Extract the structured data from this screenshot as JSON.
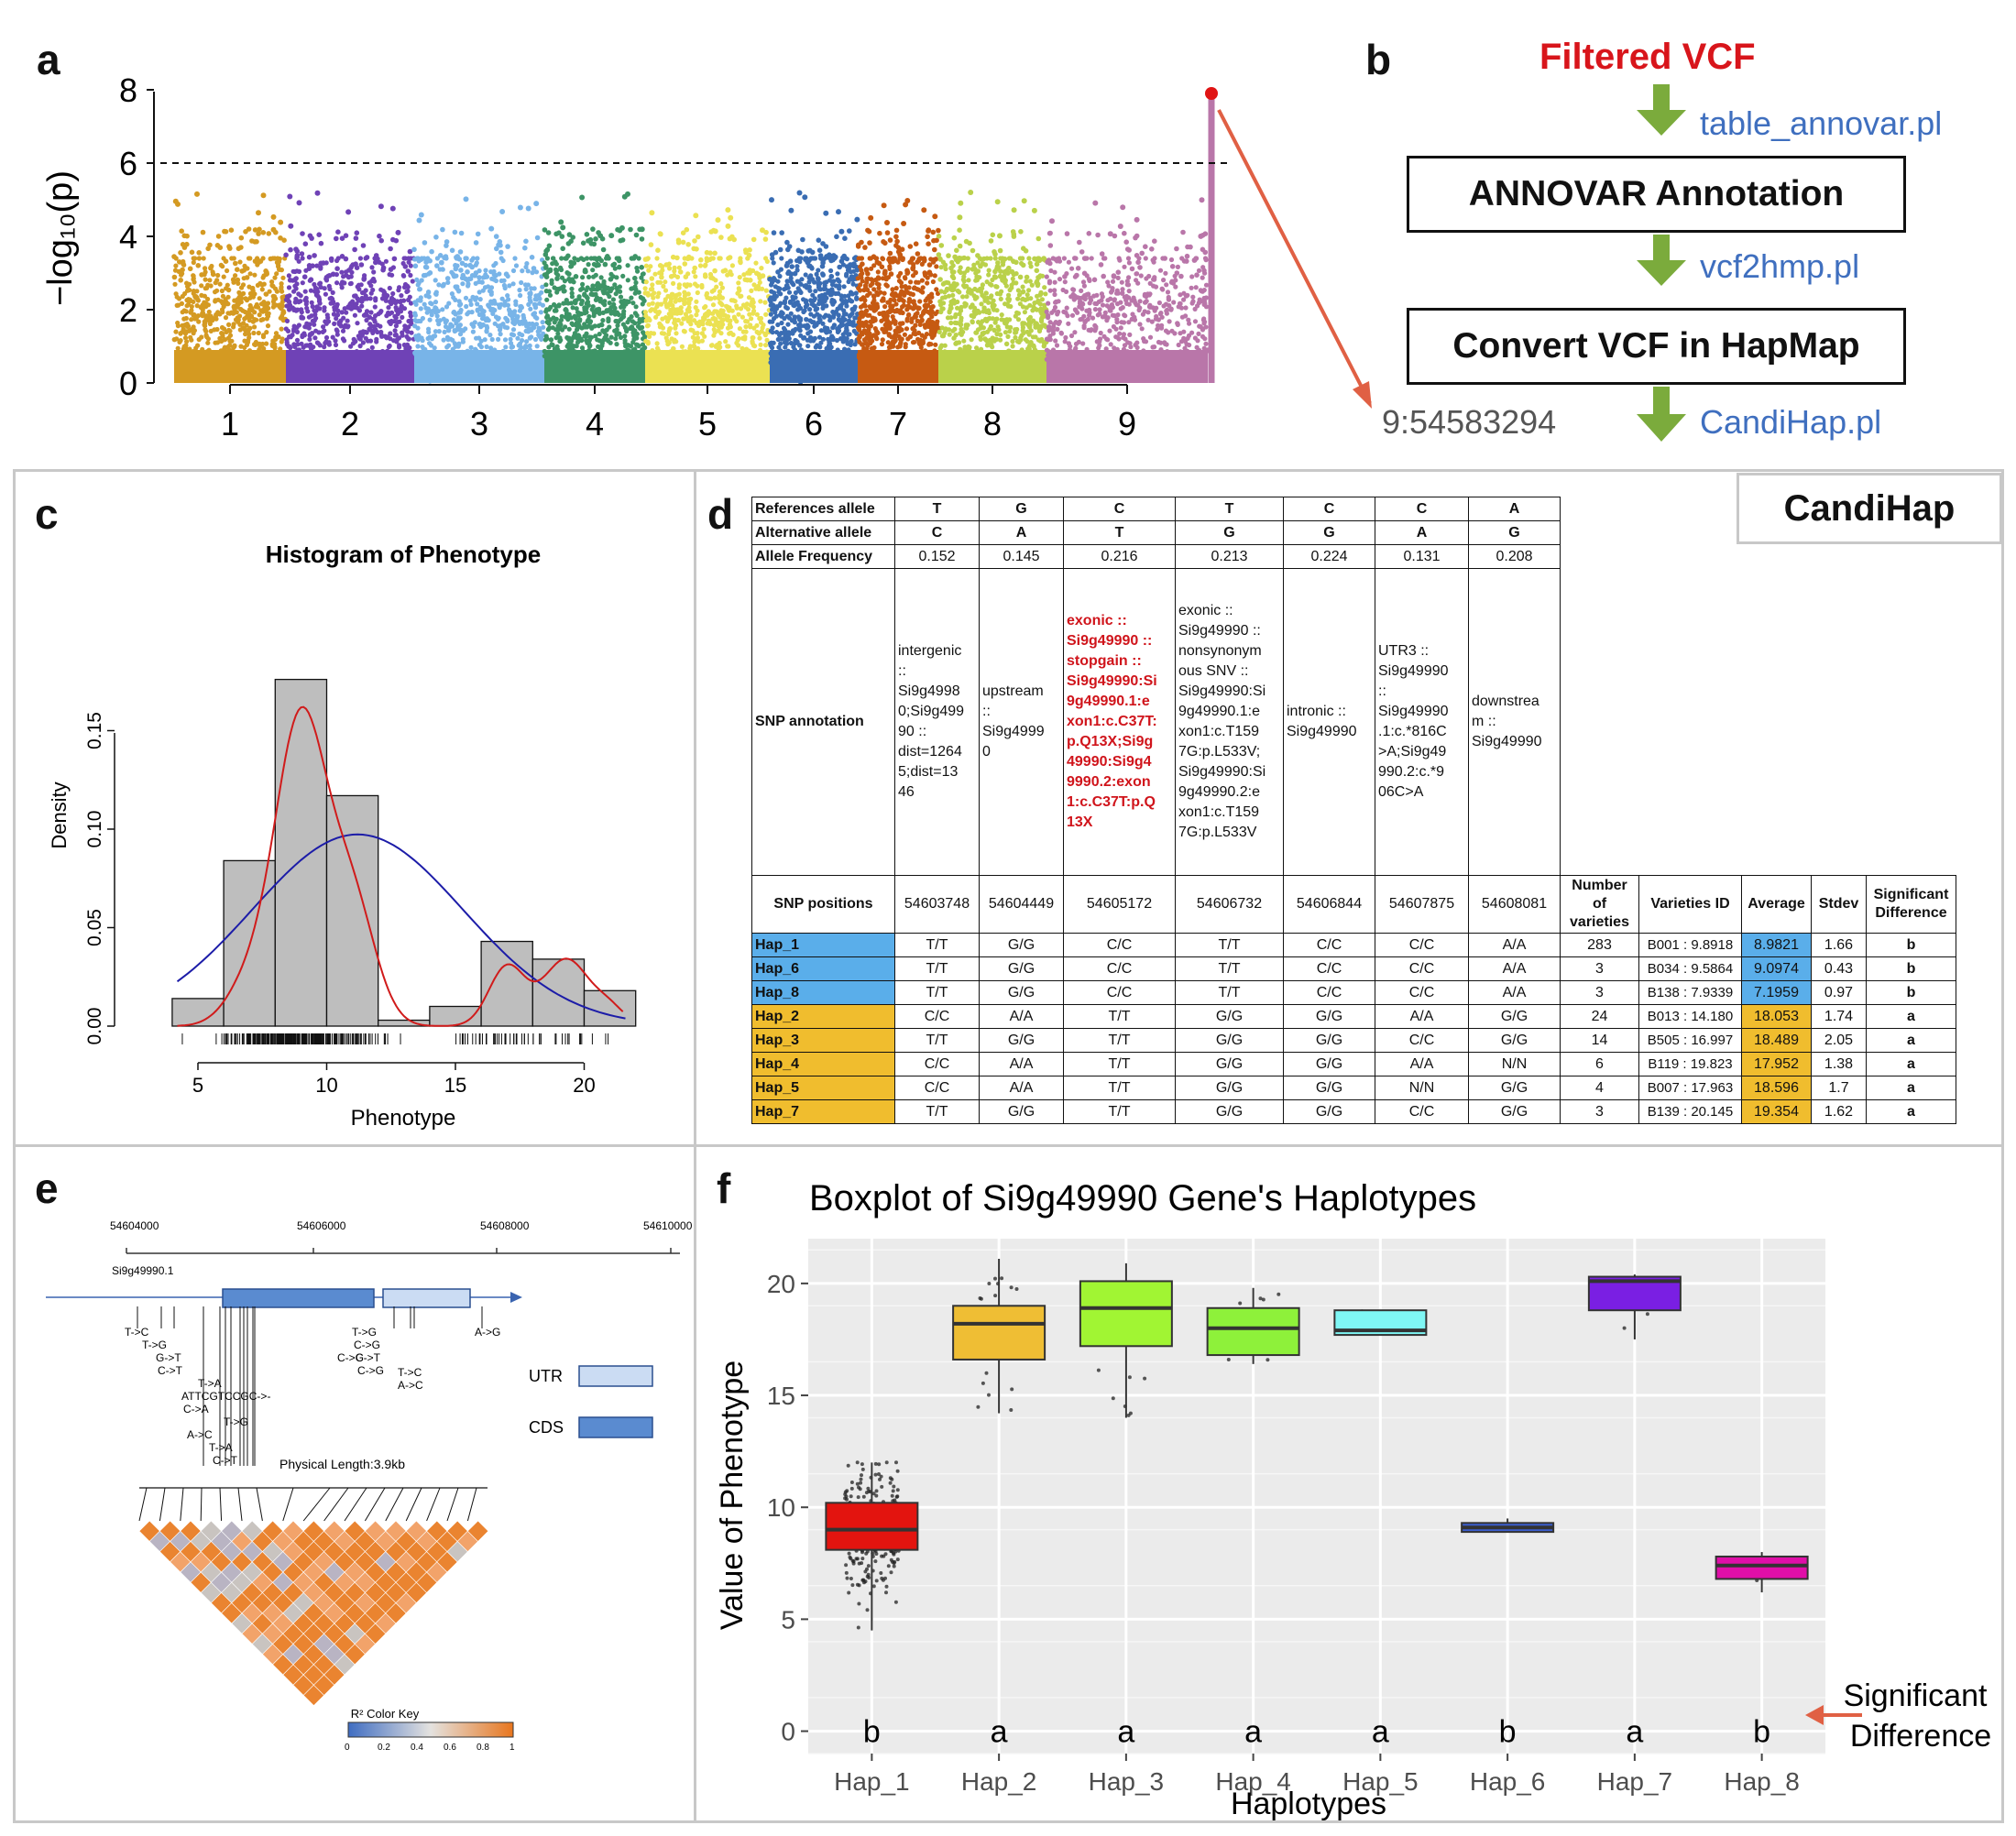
{
  "panels": {
    "a": "a",
    "b": "b",
    "c": "c",
    "d": "d",
    "e": "e",
    "f": "f"
  },
  "manhattan": {
    "ylabel": "−log₁₀(p)",
    "yticks": [
      "0",
      "2",
      "4",
      "6",
      "8"
    ],
    "chromosomes": [
      "1",
      "2",
      "3",
      "4",
      "5",
      "6",
      "7",
      "8",
      "9"
    ],
    "threshold": 6,
    "top_hit": 7.9,
    "colors": [
      "#d49a22",
      "#6f42b6",
      "#78b4e8",
      "#3d9466",
      "#ebe152",
      "#3a6db3",
      "#c65a12",
      "#bad14a",
      "#b976a9"
    ]
  },
  "pipeline": {
    "input": "Filtered VCF",
    "step1_script": "table_annovar.pl",
    "step1_box": "ANNOVAR Annotation",
    "step2_script": "vcf2hmp.pl",
    "step2_box": "Convert VCF in HapMap",
    "step3_script": "CandiHap.pl",
    "snp": "9:54583294"
  },
  "histogram": {
    "title": "Histogram of Phenotype",
    "xlabel": "Phenotype",
    "ylabel": "Density",
    "xticks": [
      "5",
      "10",
      "15",
      "20"
    ],
    "yticks": [
      "0.00",
      "0.05",
      "0.10",
      "0.15"
    ]
  },
  "table": {
    "badge": "CandiHap",
    "row_labels": {
      "ref": "References allele",
      "alt": "Alternative allele",
      "freq": "Allele Frequency",
      "ann": "SNP annotation",
      "pos": "SNP positions"
    },
    "ref": [
      "T",
      "G",
      "C",
      "T",
      "C",
      "C",
      "A"
    ],
    "alt": [
      "C",
      "A",
      "T",
      "G",
      "G",
      "A",
      "G"
    ],
    "freq": [
      "0.152",
      "0.145",
      "0.216",
      "0.213",
      "0.224",
      "0.131",
      "0.208"
    ],
    "annotations": [
      "intergenic\n::\nSi9g4998\n0;Si9g499\n90 ::\ndist=1264\n5;dist=13\n46",
      "upstream\n::\nSi9g4999\n0",
      "exonic ::\nSi9g49990 ::\nstopgain ::\nSi9g49990:Si\n9g49990.1:e\nxon1:c.C37T:\np.Q13X;Si9g\n49990:Si9g4\n9990.2:exon\n1:c.C37T:p.Q\n13X",
      "exonic ::\nSi9g49990 ::\nnonsynonym\nous SNV ::\nSi9g49990:Si\n9g49990.1:e\nxon1:c.T159\n7G:p.L533V;\nSi9g49990:Si\n9g49990.2:e\nxon1:c.T159\n7G:p.L533V",
      "intronic ::\nSi9g49990",
      "UTR3 ::\nSi9g49990\n::\nSi9g49990\n.1:c.*816C\n>A;Si9g49\n990.2:c.*9\n06C>A",
      "downstrea\nm ::\nSi9g49990"
    ],
    "positions": [
      "54603748",
      "54604449",
      "54605172",
      "54606732",
      "54606844",
      "54607875",
      "54608081"
    ],
    "extra_headers": [
      "Number of varieties",
      "Varieties ID",
      "Average",
      "Stdev",
      "Significant Difference"
    ],
    "haplotypes": [
      {
        "name": "Hap_1",
        "alleles": [
          "T/T",
          "G/G",
          "C/C",
          "T/T",
          "C/C",
          "C/C",
          "A/A"
        ],
        "n": "283",
        "id": "B001 : 9.8918",
        "avg": "8.9821",
        "sd": "1.66",
        "sig": "b",
        "group": "blue"
      },
      {
        "name": "Hap_6",
        "alleles": [
          "T/T",
          "G/G",
          "C/C",
          "T/T",
          "C/C",
          "C/C",
          "A/A"
        ],
        "n": "3",
        "id": "B034 : 9.5864",
        "avg": "9.0974",
        "sd": "0.43",
        "sig": "b",
        "group": "blue"
      },
      {
        "name": "Hap_8",
        "alleles": [
          "T/T",
          "G/G",
          "C/C",
          "T/T",
          "C/C",
          "C/C",
          "A/A"
        ],
        "n": "3",
        "id": "B138 : 7.9339",
        "avg": "7.1959",
        "sd": "0.97",
        "sig": "b",
        "group": "blue"
      },
      {
        "name": "Hap_2",
        "alleles": [
          "C/C",
          "A/A",
          "T/T",
          "G/G",
          "G/G",
          "A/A",
          "G/G"
        ],
        "n": "24",
        "id": "B013 : 14.180",
        "avg": "18.053",
        "sd": "1.74",
        "sig": "a",
        "group": "gold"
      },
      {
        "name": "Hap_3",
        "alleles": [
          "T/T",
          "G/G",
          "T/T",
          "G/G",
          "G/G",
          "C/C",
          "G/G"
        ],
        "n": "14",
        "id": "B505 : 16.997",
        "avg": "18.489",
        "sd": "2.05",
        "sig": "a",
        "group": "gold"
      },
      {
        "name": "Hap_4",
        "alleles": [
          "C/C",
          "A/A",
          "T/T",
          "G/G",
          "G/G",
          "A/A",
          "N/N"
        ],
        "n": "6",
        "id": "B119 : 19.823",
        "avg": "17.952",
        "sd": "1.38",
        "sig": "a",
        "group": "gold"
      },
      {
        "name": "Hap_5",
        "alleles": [
          "C/C",
          "A/A",
          "T/T",
          "G/G",
          "G/G",
          "N/N",
          "G/G"
        ],
        "n": "4",
        "id": "B007 : 17.963",
        "avg": "18.596",
        "sd": "1.7",
        "sig": "a",
        "group": "gold"
      },
      {
        "name": "Hap_7",
        "alleles": [
          "T/T",
          "G/G",
          "T/T",
          "G/G",
          "G/G",
          "C/C",
          "G/G"
        ],
        "n": "3",
        "id": "B139 : 20.145",
        "avg": "19.354",
        "sd": "1.62",
        "sig": "a",
        "group": "gold"
      }
    ]
  },
  "gene": {
    "coords": [
      "54604000",
      "54606000",
      "54608000",
      "54610000"
    ],
    "transcript": "Si9g49990.1",
    "left_variants": [
      "T->C",
      "T->G",
      "G->T",
      "C->T",
      "T->A",
      "ATTCGTCCGC->-",
      "C->A",
      "T->G",
      "A->C",
      "T->A",
      "C->T"
    ],
    "mid_variants": [
      "T->G",
      "C->G",
      "C->T",
      "C->G"
    ],
    "right_variants_a": [
      "T->C",
      "A->C"
    ],
    "right_variants_b": [
      "A->G"
    ],
    "legend_utr": "UTR",
    "legend_cds": "CDS",
    "length": "Physical Length:3.9kb",
    "colorkey_title": "R² Color Key",
    "colorkey_ticks": [
      "0",
      "0.2",
      "0.4",
      "0.6",
      "0.8",
      "1"
    ]
  },
  "chart_data": {
    "type": "box",
    "title": "Boxplot of Si9g49990 Gene's Haplotypes",
    "xlabel": "Haplotypes",
    "ylabel": "Value of Phenotype",
    "categories": [
      "Hap_1",
      "Hap_2",
      "Hap_3",
      "Hap_4",
      "Hap_5",
      "Hap_6",
      "Hap_7",
      "Hap_8"
    ],
    "yticks": [
      "0",
      "5",
      "10",
      "15",
      "20"
    ],
    "ylim": [
      -1,
      22
    ],
    "boxes": [
      {
        "name": "Hap_1",
        "min": 4.5,
        "q1": 8.1,
        "median": 9.0,
        "q3": 10.2,
        "max": 12.0,
        "color": "#e3140f"
      },
      {
        "name": "Hap_2",
        "min": 14.2,
        "q1": 16.6,
        "median": 18.2,
        "q3": 19.0,
        "max": 21.1,
        "color": "#efbe34"
      },
      {
        "name": "Hap_3",
        "min": 14.0,
        "q1": 17.2,
        "median": 18.9,
        "q3": 20.1,
        "max": 20.9,
        "color": "#a1f533"
      },
      {
        "name": "Hap_4",
        "min": 16.4,
        "q1": 16.8,
        "median": 18.0,
        "q3": 18.9,
        "max": 19.8,
        "color": "#8ef13a"
      },
      {
        "name": "Hap_5",
        "min": 17.7,
        "q1": 17.7,
        "median": 17.9,
        "q3": 18.8,
        "max": 18.8,
        "color": "#7ff7f5"
      },
      {
        "name": "Hap_6",
        "min": 8.9,
        "q1": 8.9,
        "median": 9.1,
        "q3": 9.3,
        "max": 9.5,
        "color": "#3c5fd1"
      },
      {
        "name": "Hap_7",
        "min": 17.5,
        "q1": 18.8,
        "median": 20.1,
        "q3": 20.3,
        "max": 20.4,
        "color": "#7a1fe3"
      },
      {
        "name": "Hap_8",
        "min": 6.2,
        "q1": 6.8,
        "median": 7.4,
        "q3": 7.8,
        "max": 8.0,
        "color": "#e00fa8"
      }
    ],
    "significance": [
      "b",
      "a",
      "a",
      "a",
      "a",
      "b",
      "a",
      "b"
    ],
    "annotation": "Significant Difference"
  }
}
